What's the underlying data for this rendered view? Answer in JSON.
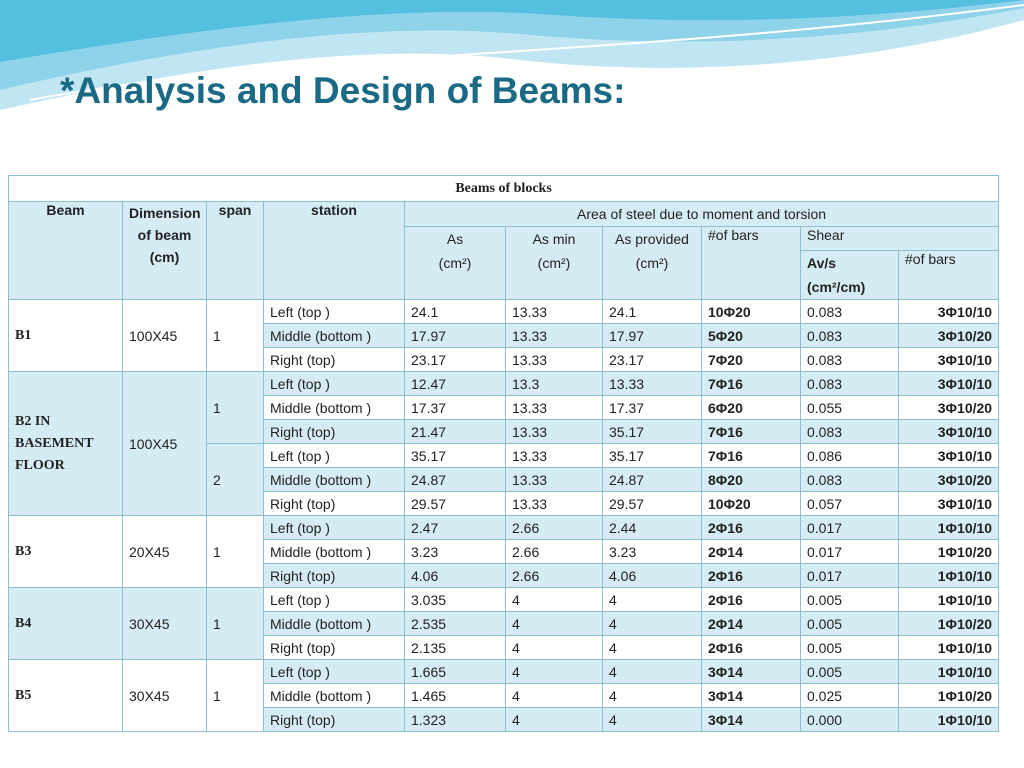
{
  "title": "*Analysis and Design of Beams:",
  "table": {
    "title": "Beams of blocks",
    "group_header": "Area of steel due to moment and torsion",
    "columns": {
      "beam": "Beam",
      "dimension": "Dimension of beam (cm)",
      "span": "span",
      "station": "station",
      "as": "As (cm²)",
      "as_min": "As min (cm²)",
      "as_provided": "As provided (cm²)",
      "bars": "#of bars",
      "shear": "Shear",
      "av_s": "Av/s (cm²/cm)",
      "shear_bars": "#of bars"
    },
    "beams": [
      {
        "name": "B1",
        "dimension": "100X45",
        "spans": [
          {
            "span": "1",
            "rows": [
              [
                "Left (top )",
                "24.1",
                "13.33",
                "24.1",
                "10Φ20",
                "0.083",
                "3Φ10/10"
              ],
              [
                "Middle (bottom )",
                "17.97",
                "13.33",
                "17.97",
                "5Φ20",
                "0.083",
                "3Φ10/20"
              ],
              [
                "Right (top)",
                "23.17",
                "13.33",
                "23.17",
                "7Φ20",
                "0.083",
                "3Φ10/10"
              ]
            ]
          }
        ]
      },
      {
        "name": "B2 IN BASEMENT FLOOR",
        "dimension": "100X45",
        "spans": [
          {
            "span": "1",
            "rows": [
              [
                "Left (top )",
                "12.47",
                "13.3",
                "13.33",
                "7Φ16",
                "0.083",
                "3Φ10/10"
              ],
              [
                "Middle (bottom )",
                "17.37",
                "13.33",
                "17.37",
                "6Φ20",
                "0.055",
                "3Φ10/20"
              ],
              [
                "Right (top)",
                "21.47",
                "13.33",
                "35.17",
                "7Φ16",
                "0.083",
                "3Φ10/10"
              ]
            ]
          },
          {
            "span": "2",
            "rows": [
              [
                "Left (top )",
                "35.17",
                "13.33",
                "35.17",
                "7Φ16",
                "0.086",
                "3Φ10/10"
              ],
              [
                "Middle (bottom )",
                "24.87",
                "13.33",
                "24.87",
                "8Φ20",
                "0.083",
                "3Φ10/20"
              ],
              [
                "Right (top)",
                "29.57",
                "13.33",
                "29.57",
                "10Φ20",
                "0.057",
                "3Φ10/10"
              ]
            ]
          }
        ]
      },
      {
        "name": "B3",
        "dimension": "20X45",
        "spans": [
          {
            "span": "1",
            "rows": [
              [
                "Left (top )",
                "2.47",
                "2.66",
                "2.44",
                "2Φ16",
                "0.017",
                "1Φ10/10"
              ],
              [
                "Middle (bottom )",
                "3.23",
                "2.66",
                "3.23",
                "2Φ14",
                "0.017",
                "1Φ10/20"
              ],
              [
                "Right (top)",
                "4.06",
                "2.66",
                "4.06",
                "2Φ16",
                "0.017",
                "1Φ10/10"
              ]
            ]
          }
        ]
      },
      {
        "name": "B4",
        "dimension": "30X45",
        "spans": [
          {
            "span": "1",
            "rows": [
              [
                "Left (top )",
                "3.035",
                "4",
                "4",
                "2Φ16",
                "0.005",
                "1Φ10/10"
              ],
              [
                "Middle (bottom )",
                "2.535",
                "4",
                "4",
                "2Φ14",
                "0.005",
                "1Φ10/20"
              ],
              [
                "Right (top)",
                "2.135",
                "4",
                "4",
                "2Φ16",
                "0.005",
                "1Φ10/10"
              ]
            ]
          }
        ]
      },
      {
        "name": "B5",
        "dimension": "30X45",
        "spans": [
          {
            "span": "1",
            "rows": [
              [
                "Left (top )",
                "1.665",
                "4",
                "4",
                "3Φ14",
                "0.005",
                "1Φ10/10"
              ],
              [
                "Middle (bottom )",
                "1.465",
                "4",
                "4",
                "3Φ14",
                "0.025",
                "1Φ10/20"
              ],
              [
                "Right (top)",
                "1.323",
                "4",
                "4",
                "3Φ14",
                "0.000",
                "1Φ10/10"
              ]
            ]
          }
        ]
      }
    ]
  }
}
